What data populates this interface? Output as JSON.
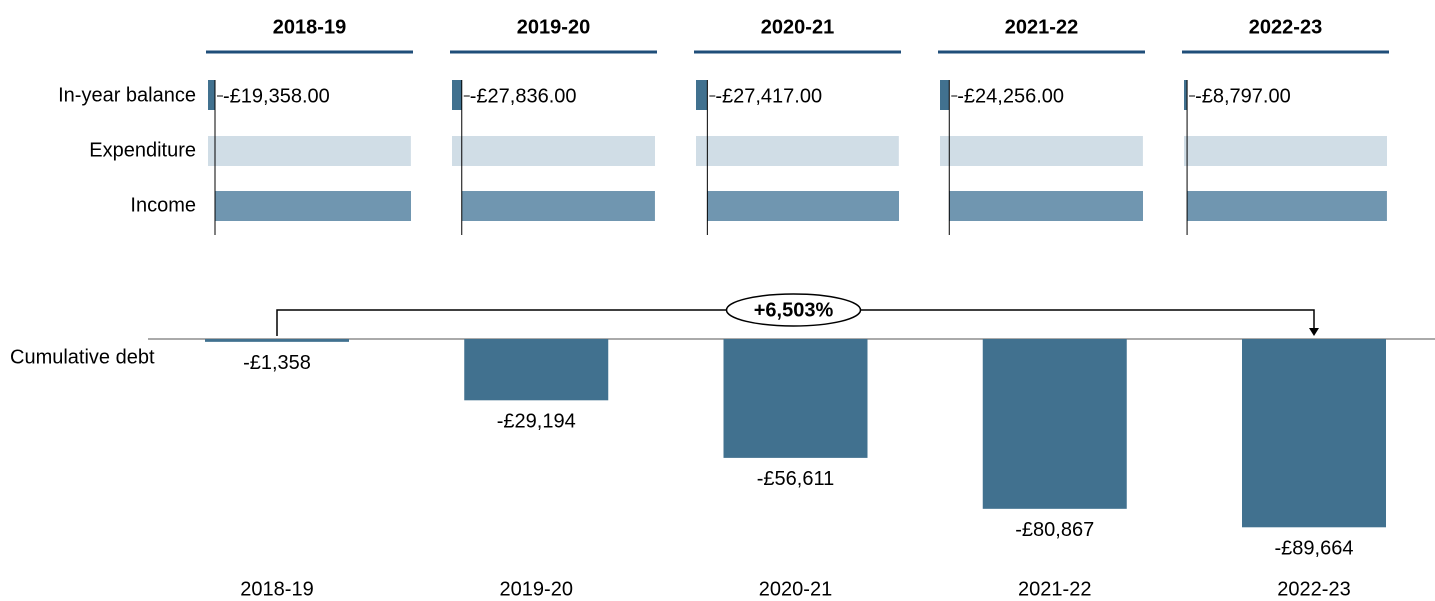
{
  "chart_data": [
    {
      "type": "panel-bars",
      "categories": [
        "2018-19",
        "2019-20",
        "2020-21",
        "2021-22",
        "2022-23"
      ],
      "series": [
        {
          "name": "In-year balance",
          "color": "#41718f",
          "values": [
            -19358,
            -27836,
            -27417,
            -24256,
            -8797
          ],
          "value_labels": [
            "-£19,358.00",
            "-£27,836.00",
            "-£27,417.00",
            "-£24,256.00",
            "-£8,797.00"
          ]
        },
        {
          "name": "Expenditure",
          "color": "#d0dde6",
          "values": [
            561000,
            579000,
            490000,
            531000,
            581000
          ]
        },
        {
          "name": "Income",
          "color": "#7096b0",
          "values": [
            542000,
            551000,
            463000,
            507000,
            572000
          ]
        }
      ]
    },
    {
      "type": "bar",
      "categories": [
        "2018-19",
        "2019-20",
        "2020-21",
        "2021-22",
        "2022-23"
      ],
      "series": [
        {
          "name": "Cumulative debt",
          "color": "#41718f",
          "values": [
            -1358,
            -29194,
            -56611,
            -80867,
            -89664
          ],
          "value_labels": [
            "-£1,358",
            "-£29,194",
            "-£56,611",
            "-£80,867",
            "-£89,664"
          ]
        }
      ],
      "ylim": [
        -100000,
        0
      ],
      "annotation": "+6,503%"
    }
  ]
}
